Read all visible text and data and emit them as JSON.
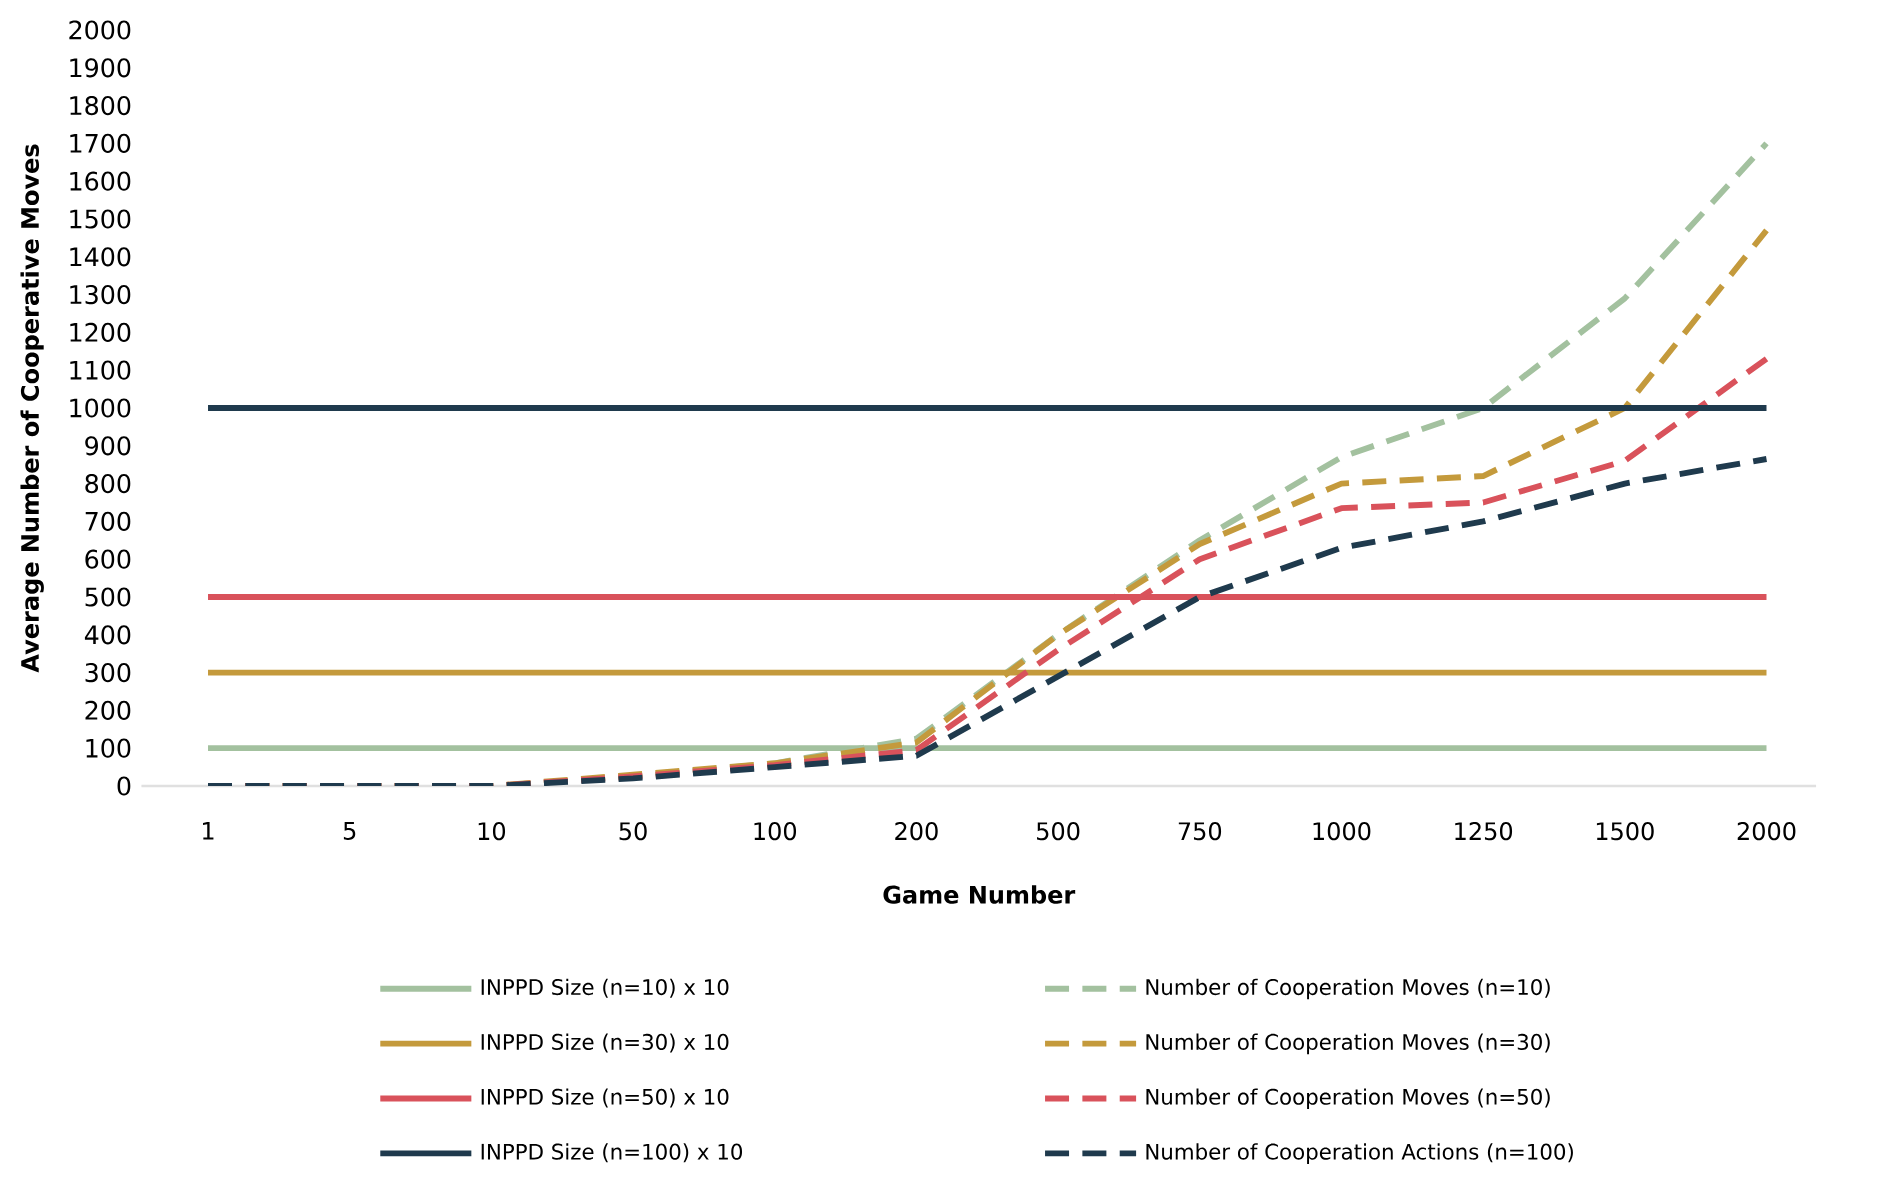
{
  "chart_data": {
    "type": "line",
    "xlabel": "Game Number",
    "ylabel": "Average Number of Cooperative Moves",
    "categories": [
      "1",
      "5",
      "10",
      "50",
      "100",
      "200",
      "500",
      "750",
      "1000",
      "1250",
      "1500",
      "2000"
    ],
    "ylim": [
      0,
      2000
    ],
    "yticks": [
      0,
      100,
      200,
      300,
      400,
      500,
      600,
      700,
      800,
      900,
      1000,
      1100,
      1200,
      1300,
      1400,
      1500,
      1600,
      1700,
      1800,
      1900,
      2000
    ],
    "legend": "bottom",
    "series": [
      {
        "name": "INPPD Size (n=10) x 10",
        "color": "#a3c19f",
        "line_style": "solid",
        "values": [
          100,
          100,
          100,
          100,
          100,
          100,
          100,
          100,
          100,
          100,
          100,
          100
        ]
      },
      {
        "name": "Number of Cooperation Moves (n=10)",
        "color": "#a3c19f",
        "line_style": "dashed",
        "values": [
          0,
          0,
          0,
          25,
          60,
          125,
          400,
          650,
          870,
          1000,
          1290,
          1700
        ]
      },
      {
        "name": "INPPD Size (n=30) x 10",
        "color": "#c49a3c",
        "line_style": "solid",
        "values": [
          300,
          300,
          300,
          300,
          300,
          300,
          300,
          300,
          300,
          300,
          300,
          300
        ]
      },
      {
        "name": "Number of Cooperation Moves (n=30)",
        "color": "#c49a3c",
        "line_style": "dashed",
        "values": [
          0,
          0,
          0,
          30,
          60,
          115,
          400,
          640,
          800,
          820,
          1000,
          1470
        ]
      },
      {
        "name": "INPPD Size (n=50) x 10",
        "color": "#d9525b",
        "line_style": "solid",
        "values": [
          500,
          500,
          500,
          500,
          500,
          500,
          500,
          500,
          500,
          500,
          500,
          500
        ]
      },
      {
        "name": "Number of Cooperation Moves (n=50)",
        "color": "#d9525b",
        "line_style": "dashed",
        "values": [
          0,
          0,
          0,
          25,
          55,
          95,
          360,
          600,
          735,
          750,
          860,
          1130
        ]
      },
      {
        "name": "INPPD Size (n=100) x 10",
        "color": "#1f3a4d",
        "line_style": "solid",
        "values": [
          1000,
          1000,
          1000,
          1000,
          1000,
          1000,
          1000,
          1000,
          1000,
          1000,
          1000,
          1000
        ]
      },
      {
        "name": "Number of Cooperation Actions (n=100)",
        "color": "#1f3a4d",
        "line_style": "dashed",
        "values": [
          0,
          0,
          0,
          20,
          50,
          80,
          290,
          500,
          630,
          700,
          800,
          865
        ]
      }
    ]
  }
}
